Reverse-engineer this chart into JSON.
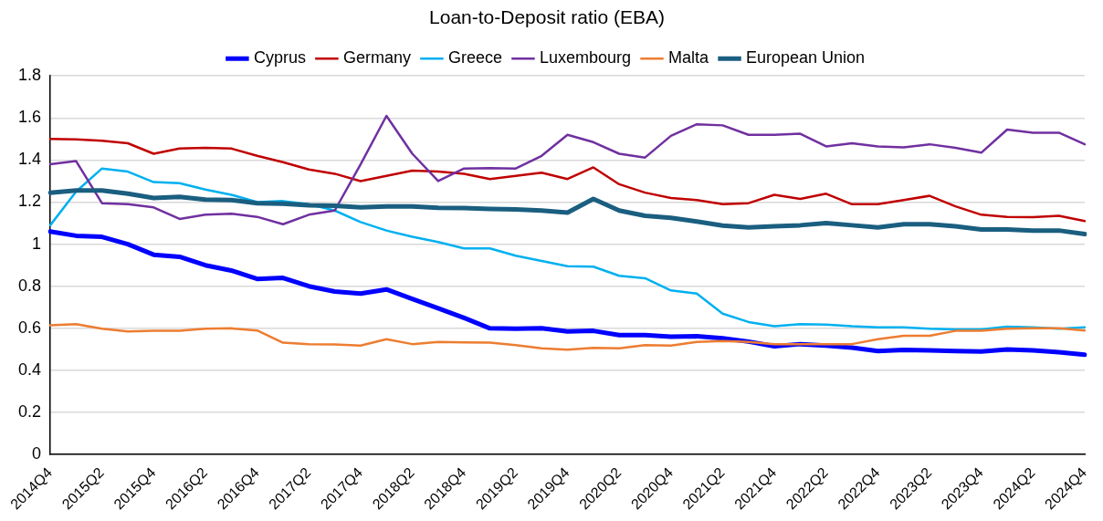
{
  "chart_data": {
    "type": "line",
    "title": "Loan-to-Deposit ratio (EBA)",
    "categories": [
      "2014Q4",
      null,
      "2015Q2",
      null,
      "2015Q4",
      null,
      "2016Q2",
      null,
      "2016Q4",
      null,
      "2017Q2",
      null,
      "2017Q4",
      null,
      "2018Q2",
      null,
      "2018Q4",
      null,
      "2019Q2",
      null,
      "2019Q4",
      null,
      "2020Q2",
      null,
      "2020Q4",
      null,
      "2021Q2",
      null,
      "2021Q4",
      null,
      "2022Q2",
      null,
      "2022Q4",
      null,
      "2023Q2",
      null,
      "2023Q4",
      null,
      "2024Q2",
      null,
      "2024Q4"
    ],
    "series": [
      {
        "name": "Cyprus",
        "color": "#0000ff",
        "values": [
          1.06,
          1.04,
          1.035,
          1.0,
          0.95,
          0.94,
          0.9,
          0.875,
          0.835,
          0.84,
          0.8,
          0.775,
          0.765,
          0.785,
          0.74,
          0.695,
          0.65,
          0.6,
          0.598,
          0.6,
          0.585,
          0.588,
          0.568,
          0.568,
          0.56,
          0.562,
          0.553,
          0.537,
          0.515,
          0.525,
          0.518,
          0.508,
          0.492,
          0.497,
          0.495,
          0.492,
          0.49,
          0.5,
          0.495,
          0.487,
          0.475
        ]
      },
      {
        "name": "Germany",
        "color": "#c00000",
        "values": [
          1.5,
          1.498,
          1.492,
          1.48,
          1.43,
          1.455,
          1.458,
          1.455,
          1.42,
          1.39,
          1.355,
          1.335,
          1.3,
          1.325,
          1.35,
          1.345,
          1.335,
          1.31,
          1.325,
          1.34,
          1.31,
          1.365,
          1.285,
          1.245,
          1.22,
          1.21,
          1.19,
          1.195,
          1.235,
          1.215,
          1.24,
          1.19,
          1.19,
          1.21,
          1.23,
          1.18,
          1.14,
          1.13,
          1.128,
          1.135,
          1.11
        ]
      },
      {
        "name": "Greece",
        "color": "#00b0f0",
        "values": [
          1.09,
          1.25,
          1.36,
          1.345,
          1.295,
          1.29,
          1.26,
          1.235,
          1.2,
          1.205,
          1.19,
          1.16,
          1.105,
          1.065,
          1.035,
          1.01,
          0.98,
          0.98,
          0.945,
          0.92,
          0.895,
          0.893,
          0.85,
          0.838,
          0.78,
          0.765,
          0.67,
          0.63,
          0.61,
          0.62,
          0.618,
          0.61,
          0.605,
          0.605,
          0.598,
          0.595,
          0.595,
          0.608,
          0.605,
          0.598,
          0.605
        ]
      },
      {
        "name": "Luxembourg",
        "color": "#7030a0",
        "values": [
          1.38,
          1.395,
          1.195,
          1.19,
          1.175,
          1.12,
          1.14,
          1.145,
          1.13,
          1.095,
          1.14,
          1.16,
          1.38,
          1.61,
          1.43,
          1.3,
          1.36,
          1.362,
          1.36,
          1.42,
          1.52,
          1.485,
          1.43,
          1.412,
          1.515,
          1.57,
          1.565,
          1.52,
          1.52,
          1.525,
          1.465,
          1.48,
          1.465,
          1.46,
          1.475,
          1.458,
          1.435,
          1.545,
          1.53,
          1.53,
          1.475
        ]
      },
      {
        "name": "Malta",
        "color": "#ed7d31",
        "values": [
          0.615,
          0.62,
          0.598,
          0.585,
          0.588,
          0.588,
          0.598,
          0.6,
          0.59,
          0.532,
          0.525,
          0.523,
          0.518,
          0.548,
          0.525,
          0.535,
          0.533,
          0.532,
          0.52,
          0.505,
          0.498,
          0.507,
          0.505,
          0.52,
          0.518,
          0.535,
          0.54,
          0.535,
          0.525,
          0.525,
          0.525,
          0.525,
          0.548,
          0.565,
          0.565,
          0.588,
          0.588,
          0.598,
          0.6,
          0.6,
          0.59
        ]
      },
      {
        "name": "European Union",
        "color": "#1a5e80",
        "values": [
          1.245,
          1.255,
          1.255,
          1.24,
          1.22,
          1.225,
          1.212,
          1.21,
          1.195,
          1.192,
          1.185,
          1.183,
          1.175,
          1.18,
          1.18,
          1.173,
          1.172,
          1.168,
          1.165,
          1.16,
          1.15,
          1.215,
          1.16,
          1.135,
          1.125,
          1.108,
          1.088,
          1.08,
          1.085,
          1.09,
          1.1,
          1.09,
          1.08,
          1.095,
          1.095,
          1.085,
          1.07,
          1.07,
          1.065,
          1.065,
          1.048
        ]
      }
    ],
    "ylim": [
      0,
      1.8
    ],
    "yticks": [
      0,
      0.2,
      0.4,
      0.6,
      0.8,
      1,
      1.2,
      1.4,
      1.6,
      1.8
    ],
    "grid": "y",
    "legend": "top",
    "marker": "none",
    "line_style": "solid"
  }
}
